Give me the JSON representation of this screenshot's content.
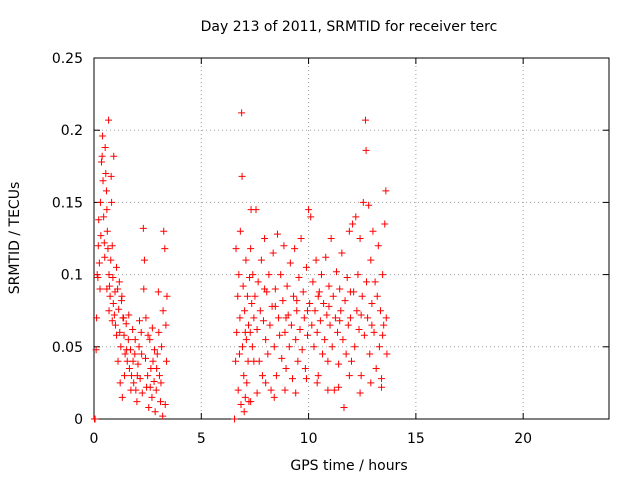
{
  "chart_data": {
    "type": "scatter",
    "title": "Day 213 of 2011, SRMTID for receiver terc",
    "xlabel": "GPS time / hours",
    "ylabel": "SRMTID / TECUs",
    "xlim": [
      0,
      24
    ],
    "ylim": [
      0,
      0.25
    ],
    "x_ticks": [
      0,
      5,
      10,
      15,
      20
    ],
    "x_tick_labels": [
      "0",
      "5",
      "10",
      "15",
      "20"
    ],
    "y_ticks": [
      0,
      0.05,
      0.1,
      0.15,
      0.2,
      0.25
    ],
    "y_tick_labels": [
      "0",
      "0.05",
      "0.1",
      "0.15",
      "0.2",
      "0.25"
    ],
    "grid": true,
    "marker": "+",
    "color": "#ff0000",
    "series": [
      {
        "points": [
          [
            0.02,
            0.0
          ],
          [
            0.05,
            0.0
          ],
          [
            0.1,
            0.048
          ],
          [
            0.12,
            0.07
          ],
          [
            0.15,
            0.1
          ],
          [
            0.18,
            0.098
          ],
          [
            0.2,
            0.12
          ],
          [
            0.22,
            0.138
          ],
          [
            0.25,
            0.108
          ],
          [
            0.28,
            0.09
          ],
          [
            0.3,
            0.15
          ],
          [
            0.32,
            0.127
          ],
          [
            0.35,
            0.178
          ],
          [
            0.38,
            0.182
          ],
          [
            0.4,
            0.196
          ],
          [
            0.42,
            0.165
          ],
          [
            0.45,
            0.14
          ],
          [
            0.48,
            0.122
          ],
          [
            0.5,
            0.112
          ],
          [
            0.52,
            0.188
          ],
          [
            0.55,
            0.17
          ],
          [
            0.58,
            0.158
          ],
          [
            0.6,
            0.145
          ],
          [
            0.62,
            0.13
          ],
          [
            0.65,
            0.118
          ],
          [
            0.68,
            0.207
          ],
          [
            0.7,
            0.1
          ],
          [
            0.72,
            0.092
          ],
          [
            0.75,
            0.085
          ],
          [
            0.78,
            0.11
          ],
          [
            0.8,
            0.168
          ],
          [
            0.82,
            0.15
          ],
          [
            0.85,
            0.12
          ],
          [
            0.88,
            0.098
          ],
          [
            0.9,
            0.08
          ],
          [
            0.92,
            0.182
          ],
          [
            0.95,
            0.072
          ],
          [
            0.98,
            0.088
          ],
          [
            1.0,
            0.065
          ],
          [
            1.05,
            0.105
          ],
          [
            1.1,
            0.09
          ],
          [
            1.15,
            0.076
          ],
          [
            1.2,
            0.06
          ],
          [
            1.25,
            0.05
          ],
          [
            1.3,
            0.085
          ],
          [
            1.35,
            0.07
          ],
          [
            1.4,
            0.058
          ],
          [
            1.45,
            0.045
          ],
          [
            1.5,
            0.066
          ],
          [
            1.55,
            0.04
          ],
          [
            1.6,
            0.055
          ],
          [
            1.65,
            0.035
          ],
          [
            1.7,
            0.048
          ],
          [
            1.75,
            0.03
          ],
          [
            1.8,
            0.062
          ],
          [
            1.85,
            0.025
          ],
          [
            1.9,
            0.045
          ],
          [
            1.95,
            0.02
          ],
          [
            2.0,
            0.012
          ],
          [
            2.05,
            0.038
          ],
          [
            2.1,
            0.05
          ],
          [
            2.15,
            0.028
          ],
          [
            2.2,
            0.06
          ],
          [
            2.25,
            0.018
          ],
          [
            2.3,
            0.132
          ],
          [
            2.35,
            0.11
          ],
          [
            2.4,
            0.042
          ],
          [
            2.45,
            0.022
          ],
          [
            2.5,
            0.03
          ],
          [
            2.55,
            0.008
          ],
          [
            2.6,
            0.055
          ],
          [
            2.65,
            0.035
          ],
          [
            2.7,
            0.015
          ],
          [
            2.75,
            0.04
          ],
          [
            2.8,
            0.026
          ],
          [
            2.85,
            0.005
          ],
          [
            2.9,
            0.02
          ],
          [
            2.95,
            0.045
          ],
          [
            3.0,
            0.088
          ],
          [
            3.05,
            0.03
          ],
          [
            3.1,
            0.012
          ],
          [
            3.15,
            0.05
          ],
          [
            3.2,
            0.002
          ],
          [
            3.25,
            0.13
          ],
          [
            3.3,
            0.118
          ],
          [
            3.35,
            0.065
          ],
          [
            3.38,
            0.04
          ],
          [
            3.4,
            0.085
          ],
          [
            1.12,
            0.04
          ],
          [
            1.22,
            0.025
          ],
          [
            1.32,
            0.015
          ],
          [
            1.42,
            0.03
          ],
          [
            1.52,
            0.048
          ],
          [
            1.62,
            0.072
          ],
          [
            1.72,
            0.02
          ],
          [
            1.82,
            0.04
          ],
          [
            1.92,
            0.055
          ],
          [
            2.02,
            0.03
          ],
          [
            2.12,
            0.068
          ],
          [
            2.22,
            0.045
          ],
          [
            2.32,
            0.09
          ],
          [
            2.42,
            0.07
          ],
          [
            2.52,
            0.058
          ],
          [
            2.62,
            0.022
          ],
          [
            2.72,
            0.063
          ],
          [
            2.82,
            0.048
          ],
          [
            2.92,
            0.035
          ],
          [
            3.02,
            0.06
          ],
          [
            3.12,
            0.025
          ],
          [
            3.22,
            0.075
          ],
          [
            3.32,
            0.01
          ],
          [
            0.6,
            0.09
          ],
          [
            0.7,
            0.075
          ],
          [
            0.85,
            0.068
          ],
          [
            1.05,
            0.058
          ],
          [
            1.18,
            0.095
          ],
          [
            1.28,
            0.082
          ],
          [
            1.38,
            0.07
          ],
          [
            6.55,
            0.0
          ],
          [
            6.6,
            0.04
          ],
          [
            6.62,
            0.118
          ],
          [
            6.65,
            0.06
          ],
          [
            6.7,
            0.085
          ],
          [
            6.72,
            0.02
          ],
          [
            6.75,
            0.1
          ],
          [
            6.78,
            0.045
          ],
          [
            6.8,
            0.07
          ],
          [
            6.82,
            0.13
          ],
          [
            6.85,
            0.01
          ],
          [
            6.88,
            0.212
          ],
          [
            6.9,
            0.168
          ],
          [
            6.92,
            0.05
          ],
          [
            6.95,
            0.092
          ],
          [
            6.98,
            0.03
          ],
          [
            7.0,
            0.005
          ],
          [
            7.02,
            0.075
          ],
          [
            7.05,
            0.015
          ],
          [
            7.08,
            0.11
          ],
          [
            7.1,
            0.055
          ],
          [
            7.12,
            0.025
          ],
          [
            7.15,
            0.085
          ],
          [
            7.18,
            0.04
          ],
          [
            7.2,
            0.065
          ],
          [
            7.22,
            0.012
          ],
          [
            7.25,
            0.098
          ],
          [
            7.28,
            0.06
          ],
          [
            7.3,
            0.118
          ],
          [
            7.32,
            0.145
          ],
          [
            7.35,
            0.08
          ],
          [
            7.38,
            0.05
          ],
          [
            7.4,
            0.1
          ],
          [
            7.45,
            0.07
          ],
          [
            7.5,
            0.085
          ],
          [
            7.55,
            0.145
          ],
          [
            7.6,
            0.062
          ],
          [
            7.65,
            0.095
          ],
          [
            7.7,
            0.04
          ],
          [
            7.75,
            0.075
          ],
          [
            7.8,
            0.11
          ],
          [
            7.85,
            0.03
          ],
          [
            7.9,
            0.068
          ],
          [
            7.95,
            0.125
          ],
          [
            8.0,
            0.055
          ],
          [
            8.05,
            0.088
          ],
          [
            8.1,
            0.045
          ],
          [
            8.15,
            0.1
          ],
          [
            8.2,
            0.065
          ],
          [
            8.25,
            0.02
          ],
          [
            8.3,
            0.078
          ],
          [
            8.35,
            0.115
          ],
          [
            8.4,
            0.05
          ],
          [
            8.45,
            0.09
          ],
          [
            8.5,
            0.03
          ],
          [
            8.55,
            0.128
          ],
          [
            8.6,
            0.07
          ],
          [
            8.65,
            0.058
          ],
          [
            8.7,
            0.1
          ],
          [
            8.75,
            0.042
          ],
          [
            8.8,
            0.082
          ],
          [
            8.85,
            0.12
          ],
          [
            8.9,
            0.06
          ],
          [
            8.95,
            0.035
          ],
          [
            9.0,
            0.092
          ],
          [
            9.05,
            0.072
          ],
          [
            9.1,
            0.05
          ],
          [
            9.15,
            0.108
          ],
          [
            9.2,
            0.065
          ],
          [
            9.25,
            0.028
          ],
          [
            9.3,
            0.085
          ],
          [
            9.35,
            0.118
          ],
          [
            9.4,
            0.055
          ],
          [
            9.45,
            0.075
          ],
          [
            9.5,
            0.04
          ],
          [
            9.55,
            0.098
          ],
          [
            9.6,
            0.062
          ],
          [
            9.65,
            0.125
          ],
          [
            9.7,
            0.048
          ],
          [
            9.75,
            0.088
          ],
          [
            9.8,
            0.07
          ],
          [
            9.85,
            0.035
          ],
          [
            9.9,
            0.105
          ],
          [
            9.95,
            0.058
          ],
          [
            10.0,
            0.145
          ],
          [
            10.05,
            0.08
          ],
          [
            10.1,
            0.14
          ],
          [
            10.15,
            0.065
          ],
          [
            10.2,
            0.095
          ],
          [
            10.25,
            0.05
          ],
          [
            10.3,
            0.075
          ],
          [
            10.35,
            0.11
          ],
          [
            10.4,
            0.06
          ],
          [
            10.45,
            0.03
          ],
          [
            10.5,
            0.088
          ],
          [
            10.55,
            0.068
          ],
          [
            10.6,
            0.1
          ],
          [
            10.65,
            0.045
          ],
          [
            10.7,
            0.08
          ],
          [
            10.75,
            0.055
          ],
          [
            10.8,
            0.112
          ],
          [
            10.85,
            0.072
          ],
          [
            10.9,
            0.04
          ],
          [
            10.95,
            0.092
          ],
          [
            11.0,
            0.065
          ],
          [
            11.05,
            0.125
          ],
          [
            11.1,
            0.05
          ],
          [
            11.15,
            0.085
          ],
          [
            11.2,
            0.02
          ],
          [
            11.25,
            0.07
          ],
          [
            11.3,
            0.102
          ],
          [
            11.35,
            0.06
          ],
          [
            11.4,
            0.038
          ],
          [
            11.45,
            0.09
          ],
          [
            11.5,
            0.075
          ],
          [
            11.55,
            0.115
          ],
          [
            11.6,
            0.055
          ],
          [
            11.65,
            0.008
          ],
          [
            11.7,
            0.082
          ],
          [
            11.75,
            0.045
          ],
          [
            11.8,
            0.098
          ],
          [
            11.85,
            0.065
          ],
          [
            11.9,
            0.13
          ],
          [
            11.95,
            0.07
          ],
          [
            12.0,
            0.04
          ],
          [
            12.05,
            0.135
          ],
          [
            12.1,
            0.088
          ],
          [
            12.15,
            0.05
          ],
          [
            12.2,
            0.14
          ],
          [
            12.25,
            0.075
          ],
          [
            12.3,
            0.1
          ],
          [
            12.35,
            0.062
          ],
          [
            12.4,
            0.125
          ],
          [
            12.45,
            0.03
          ],
          [
            12.5,
            0.085
          ],
          [
            12.55,
            0.15
          ],
          [
            12.6,
            0.058
          ],
          [
            12.65,
            0.207
          ],
          [
            12.68,
            0.186
          ],
          [
            12.7,
            0.095
          ],
          [
            12.75,
            0.07
          ],
          [
            12.8,
            0.148
          ],
          [
            12.85,
            0.045
          ],
          [
            12.9,
            0.11
          ],
          [
            12.95,
            0.08
          ],
          [
            13.0,
            0.13
          ],
          [
            13.05,
            0.06
          ],
          [
            13.1,
            0.095
          ],
          [
            13.15,
            0.035
          ],
          [
            13.2,
            0.085
          ],
          [
            13.25,
            0.12
          ],
          [
            13.3,
            0.05
          ],
          [
            13.35,
            0.075
          ],
          [
            13.4,
            0.028
          ],
          [
            13.45,
            0.1
          ],
          [
            13.5,
            0.065
          ],
          [
            13.55,
            0.135
          ],
          [
            13.6,
            0.158
          ],
          [
            13.62,
            0.07
          ],
          [
            13.65,
            0.045
          ],
          [
            7.3,
            0.012
          ],
          [
            7.6,
            0.018
          ],
          [
            8.0,
            0.025
          ],
          [
            8.4,
            0.015
          ],
          [
            8.9,
            0.02
          ],
          [
            9.4,
            0.018
          ],
          [
            9.9,
            0.028
          ],
          [
            10.4,
            0.025
          ],
          [
            10.9,
            0.02
          ],
          [
            11.4,
            0.022
          ],
          [
            11.9,
            0.03
          ],
          [
            12.4,
            0.018
          ],
          [
            12.9,
            0.025
          ],
          [
            13.4,
            0.022
          ],
          [
            7.05,
            0.06
          ],
          [
            7.45,
            0.04
          ],
          [
            7.95,
            0.09
          ],
          [
            8.45,
            0.078
          ],
          [
            8.95,
            0.07
          ],
          [
            9.45,
            0.082
          ],
          [
            9.95,
            0.075
          ],
          [
            10.45,
            0.085
          ],
          [
            10.95,
            0.078
          ],
          [
            11.45,
            0.068
          ],
          [
            11.95,
            0.088
          ],
          [
            12.45,
            0.072
          ],
          [
            12.95,
            0.065
          ],
          [
            13.45,
            0.058
          ]
        ]
      }
    ]
  }
}
